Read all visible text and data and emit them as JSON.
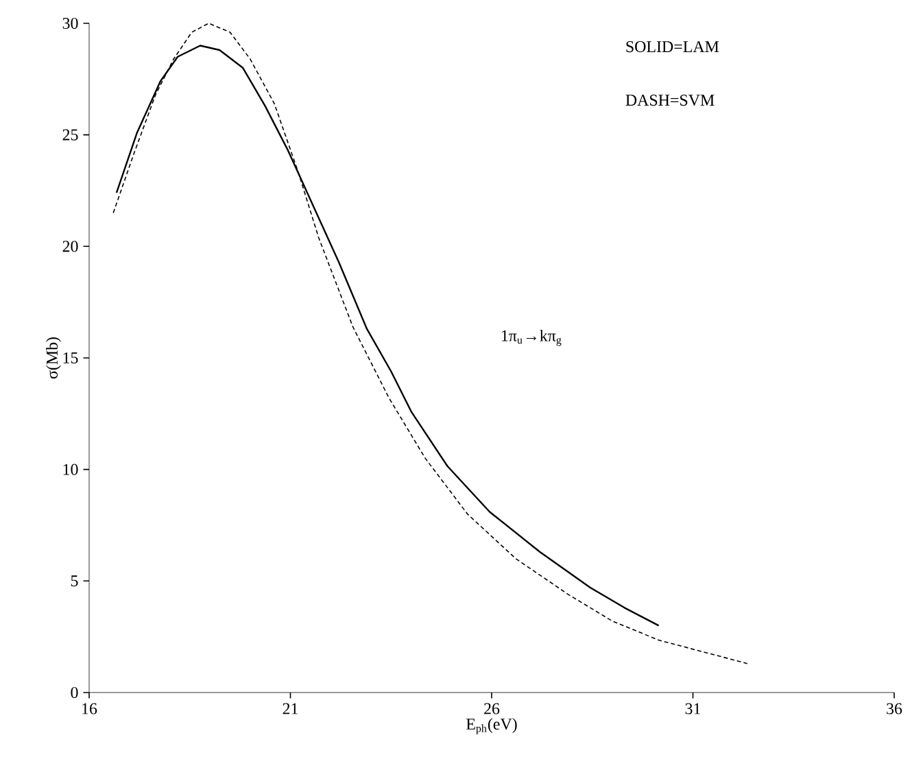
{
  "chart_data": {
    "type": "line",
    "xlabel": "E$_{ph}$(eV)",
    "ylabel": "σ(Mb)",
    "xlim": [
      16,
      36
    ],
    "xticks": [
      16,
      21,
      26,
      31,
      36
    ],
    "ylim": [
      0,
      30
    ],
    "yticks": [
      0,
      5,
      10,
      15,
      20,
      25,
      30
    ],
    "annotations": [
      "SOLID=LAM",
      "DASH=SVM",
      "1π$_{u}$→kπ$_{g}$"
    ],
    "series": [
      {
        "color": "#000000",
        "line_style": "solid",
        "x": [
          16.68,
          17.19,
          17.77,
          18.2,
          18.76,
          19.24,
          19.82,
          20.37,
          20.94,
          21.52,
          22.2,
          22.9,
          23.5,
          24.0,
          24.9,
          25.95,
          27.2,
          28.45,
          29.3,
          30.15
        ],
        "values": [
          22.4,
          25.1,
          27.4,
          28.5,
          29.0,
          28.8,
          28.0,
          26.3,
          24.3,
          22.0,
          19.3,
          16.3,
          14.4,
          12.6,
          10.15,
          8.1,
          6.3,
          4.7,
          3.8,
          3.0
        ]
      },
      {
        "color": "#000000",
        "line_style": "dashed",
        "x": [
          16.6,
          17.1,
          17.65,
          18.1,
          18.55,
          18.97,
          19.5,
          20.0,
          20.6,
          21.2,
          21.7,
          22.55,
          23.45,
          24.35,
          25.4,
          26.6,
          27.9,
          29.0,
          30.15,
          31.3,
          32.35
        ],
        "values": [
          21.5,
          24.1,
          26.8,
          28.4,
          29.6,
          30.0,
          29.6,
          28.4,
          26.4,
          23.3,
          20.4,
          16.4,
          13.2,
          10.5,
          8.0,
          6.0,
          4.4,
          3.2,
          2.35,
          1.8,
          1.3
        ]
      }
    ]
  }
}
